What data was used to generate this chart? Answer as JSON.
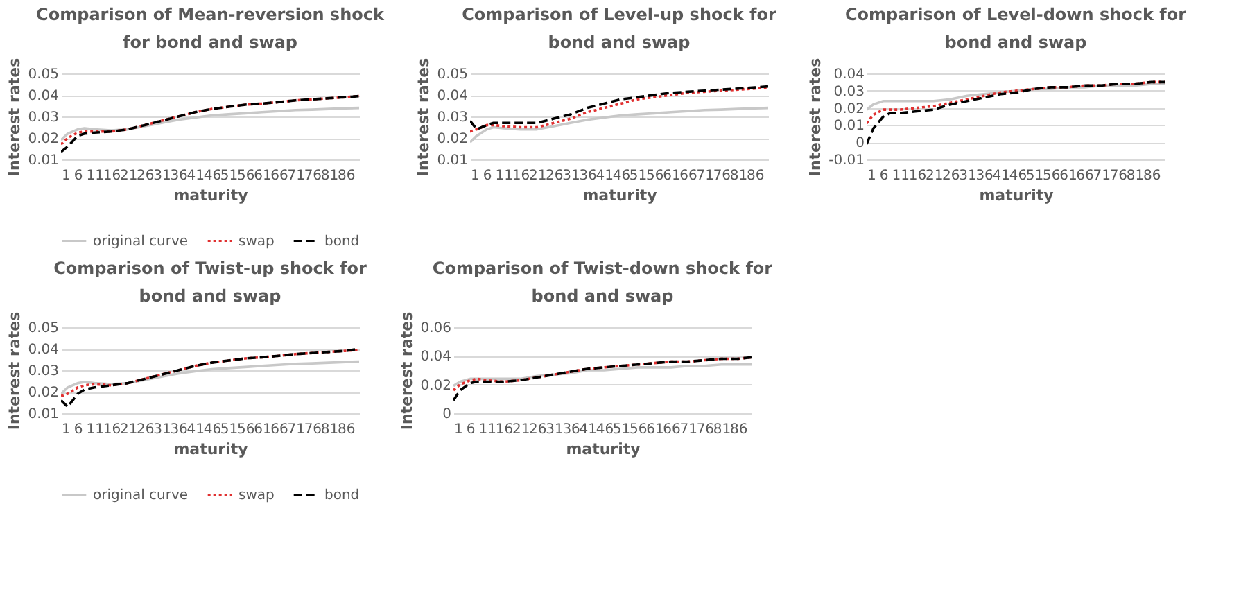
{
  "chart_data": [
    {
      "type": "line",
      "title": "Comparison of Mean-reversion shock for bond and swap",
      "xlabel": "maturity",
      "ylabel": "Interest rates",
      "x": [
        1,
        3,
        6,
        8,
        11,
        16,
        21,
        26,
        31,
        36,
        41,
        46,
        51,
        56,
        61,
        66,
        71,
        76,
        81,
        86,
        90
      ],
      "xlim": [
        1,
        90
      ],
      "xticks": [
        1,
        6,
        11,
        16,
        21,
        26,
        31,
        36,
        41,
        46,
        51,
        56,
        61,
        66,
        71,
        76,
        81,
        86
      ],
      "ylim": [
        0.01,
        0.05
      ],
      "yticks": [
        0.01,
        0.02,
        0.03,
        0.04,
        0.05
      ],
      "grid": "y",
      "legend": "bottom",
      "marker": "none",
      "series": [
        {
          "name": "original curve",
          "color": "#c8c8c8",
          "line_style": "solid",
          "values": [
            0.019,
            0.022,
            0.024,
            0.0245,
            0.024,
            0.0235,
            0.024,
            0.0255,
            0.027,
            0.0285,
            0.0295,
            0.0305,
            0.031,
            0.0315,
            0.032,
            0.0325,
            0.033,
            0.0332,
            0.0335,
            0.0338,
            0.034
          ]
        },
        {
          "name": "swap",
          "color": "#e03030",
          "line_style": "dotted",
          "values": [
            0.017,
            0.02,
            0.0225,
            0.023,
            0.023,
            0.023,
            0.024,
            0.026,
            0.028,
            0.03,
            0.032,
            0.0335,
            0.0345,
            0.0355,
            0.036,
            0.0367,
            0.0375,
            0.038,
            0.0385,
            0.039,
            0.0395
          ]
        },
        {
          "name": "bond",
          "color": "#000000",
          "line_style": "dashed",
          "values": [
            0.0135,
            0.016,
            0.021,
            0.022,
            0.0225,
            0.023,
            0.024,
            0.026,
            0.028,
            0.03,
            0.032,
            0.0335,
            0.0345,
            0.0355,
            0.036,
            0.0367,
            0.0375,
            0.038,
            0.0385,
            0.039,
            0.0395
          ]
        }
      ]
    },
    {
      "type": "line",
      "title": "Comparison of Level-up shock for bond and swap",
      "xlabel": "maturity",
      "ylabel": "Interest rates",
      "x": [
        1,
        3,
        6,
        8,
        11,
        16,
        21,
        26,
        31,
        36,
        41,
        46,
        51,
        56,
        61,
        66,
        71,
        76,
        81,
        86,
        90
      ],
      "xlim": [
        1,
        90
      ],
      "xticks": [
        1,
        6,
        11,
        16,
        21,
        26,
        31,
        36,
        41,
        46,
        51,
        56,
        61,
        66,
        71,
        76,
        81,
        86
      ],
      "ylim": [
        0.01,
        0.05
      ],
      "yticks": [
        0.01,
        0.02,
        0.03,
        0.04,
        0.05
      ],
      "grid": "y",
      "legend": "bottom",
      "marker": "none",
      "series": [
        {
          "name": "original curve",
          "color": "#c8c8c8",
          "line_style": "solid",
          "values": [
            0.018,
            0.021,
            0.024,
            0.025,
            0.0245,
            0.024,
            0.024,
            0.0255,
            0.027,
            0.0285,
            0.0295,
            0.0305,
            0.031,
            0.0315,
            0.032,
            0.0325,
            0.033,
            0.0332,
            0.0335,
            0.0338,
            0.034
          ]
        },
        {
          "name": "swap",
          "color": "#e03030",
          "line_style": "dotted",
          "values": [
            0.023,
            0.024,
            0.026,
            0.026,
            0.0255,
            0.025,
            0.025,
            0.027,
            0.029,
            0.032,
            0.034,
            0.036,
            0.038,
            0.039,
            0.04,
            0.041,
            0.0415,
            0.042,
            0.0425,
            0.043,
            0.0435
          ]
        },
        {
          "name": "bond",
          "color": "#000000",
          "line_style": "dashed",
          "values": [
            0.028,
            0.024,
            0.026,
            0.027,
            0.027,
            0.027,
            0.027,
            0.029,
            0.031,
            0.034,
            0.036,
            0.038,
            0.039,
            0.04,
            0.041,
            0.0415,
            0.042,
            0.0425,
            0.043,
            0.0435,
            0.044
          ]
        }
      ]
    },
    {
      "type": "line",
      "title": "Comparison of Level-down shock for bond and swap",
      "xlabel": "maturity",
      "ylabel": "Interest rates",
      "x": [
        1,
        3,
        6,
        8,
        11,
        16,
        21,
        26,
        31,
        36,
        41,
        46,
        51,
        56,
        61,
        66,
        71,
        76,
        81,
        86,
        90
      ],
      "xlim": [
        1,
        90
      ],
      "xticks": [
        1,
        6,
        11,
        16,
        21,
        26,
        31,
        36,
        41,
        46,
        51,
        56,
        61,
        66,
        71,
        76,
        81,
        86
      ],
      "ylim": [
        -0.01,
        0.04
      ],
      "yticks": [
        -0.01,
        0,
        0.01,
        0.02,
        0.03,
        0.04
      ],
      "grid": "y",
      "legend": "bottom",
      "marker": "none",
      "series": [
        {
          "name": "original curve",
          "color": "#c8c8c8",
          "line_style": "solid",
          "values": [
            0.019,
            0.022,
            0.024,
            0.024,
            0.024,
            0.024,
            0.024,
            0.025,
            0.027,
            0.028,
            0.029,
            0.03,
            0.031,
            0.031,
            0.032,
            0.032,
            0.033,
            0.033,
            0.033,
            0.034,
            0.034
          ]
        },
        {
          "name": "swap",
          "color": "#e03030",
          "line_style": "dotted",
          "values": [
            0.011,
            0.016,
            0.019,
            0.019,
            0.019,
            0.02,
            0.021,
            0.023,
            0.025,
            0.027,
            0.029,
            0.03,
            0.031,
            0.032,
            0.032,
            0.033,
            0.033,
            0.034,
            0.034,
            0.035,
            0.035
          ]
        },
        {
          "name": "bond",
          "color": "#000000",
          "line_style": "dashed",
          "values": [
            -0.001,
            0.008,
            0.015,
            0.017,
            0.017,
            0.018,
            0.019,
            0.022,
            0.024,
            0.026,
            0.028,
            0.029,
            0.031,
            0.032,
            0.032,
            0.033,
            0.033,
            0.034,
            0.034,
            0.035,
            0.035
          ]
        }
      ]
    },
    {
      "type": "line",
      "title": "Comparison of Twist-up shock for bond and swap",
      "xlabel": "maturity",
      "ylabel": "Interest rates",
      "x": [
        1,
        3,
        6,
        8,
        11,
        16,
        21,
        26,
        31,
        36,
        41,
        46,
        51,
        56,
        61,
        66,
        71,
        76,
        81,
        86,
        90
      ],
      "xlim": [
        1,
        90
      ],
      "xticks": [
        1,
        6,
        11,
        16,
        21,
        26,
        31,
        36,
        41,
        46,
        51,
        56,
        61,
        66,
        71,
        76,
        81,
        86
      ],
      "ylim": [
        0.01,
        0.05
      ],
      "yticks": [
        0.01,
        0.02,
        0.03,
        0.04,
        0.05
      ],
      "grid": "y",
      "legend": "bottom",
      "marker": "none",
      "series": [
        {
          "name": "original curve",
          "color": "#c8c8c8",
          "line_style": "solid",
          "values": [
            0.019,
            0.022,
            0.024,
            0.0245,
            0.024,
            0.0235,
            0.024,
            0.0255,
            0.027,
            0.0285,
            0.0295,
            0.0305,
            0.031,
            0.0315,
            0.032,
            0.0325,
            0.033,
            0.0332,
            0.0335,
            0.0338,
            0.034
          ]
        },
        {
          "name": "swap",
          "color": "#e03030",
          "line_style": "dotted",
          "values": [
            0.018,
            0.019,
            0.022,
            0.023,
            0.0235,
            0.023,
            0.024,
            0.026,
            0.028,
            0.03,
            0.032,
            0.0335,
            0.0345,
            0.0355,
            0.036,
            0.0367,
            0.0375,
            0.038,
            0.0385,
            0.039,
            0.0395
          ]
        },
        {
          "name": "bond",
          "color": "#000000",
          "line_style": "dashed",
          "values": [
            0.016,
            0.013,
            0.019,
            0.021,
            0.022,
            0.023,
            0.024,
            0.026,
            0.028,
            0.03,
            0.032,
            0.0335,
            0.0345,
            0.0355,
            0.036,
            0.0367,
            0.0375,
            0.038,
            0.0385,
            0.039,
            0.04
          ]
        }
      ]
    },
    {
      "type": "line",
      "title": "Comparison of Twist-down shock for bond and swap",
      "xlabel": "maturity",
      "ylabel": "Interest rates",
      "x": [
        1,
        3,
        6,
        8,
        11,
        16,
        21,
        26,
        31,
        36,
        41,
        46,
        51,
        56,
        61,
        66,
        71,
        76,
        81,
        86,
        90
      ],
      "xlim": [
        1,
        90
      ],
      "xticks": [
        1,
        6,
        11,
        16,
        21,
        26,
        31,
        36,
        41,
        46,
        51,
        56,
        61,
        66,
        71,
        76,
        81,
        86
      ],
      "ylim": [
        0,
        0.06
      ],
      "yticks": [
        0,
        0.02,
        0.04,
        0.06
      ],
      "grid": "y",
      "legend": "bottom",
      "marker": "none",
      "series": [
        {
          "name": "original curve",
          "color": "#c8c8c8",
          "line_style": "solid",
          "values": [
            0.019,
            0.022,
            0.024,
            0.024,
            0.024,
            0.024,
            0.024,
            0.026,
            0.027,
            0.028,
            0.03,
            0.03,
            0.031,
            0.032,
            0.032,
            0.032,
            0.033,
            0.033,
            0.034,
            0.034,
            0.034
          ]
        },
        {
          "name": "swap",
          "color": "#e03030",
          "line_style": "dotted",
          "values": [
            0.016,
            0.02,
            0.023,
            0.024,
            0.023,
            0.022,
            0.023,
            0.025,
            0.027,
            0.029,
            0.031,
            0.032,
            0.033,
            0.034,
            0.035,
            0.036,
            0.036,
            0.037,
            0.038,
            0.038,
            0.039
          ]
        },
        {
          "name": "bond",
          "color": "#000000",
          "line_style": "dashed",
          "values": [
            0.009,
            0.016,
            0.021,
            0.022,
            0.022,
            0.022,
            0.023,
            0.025,
            0.027,
            0.029,
            0.031,
            0.032,
            0.033,
            0.034,
            0.035,
            0.036,
            0.036,
            0.037,
            0.038,
            0.038,
            0.039
          ]
        }
      ]
    }
  ]
}
